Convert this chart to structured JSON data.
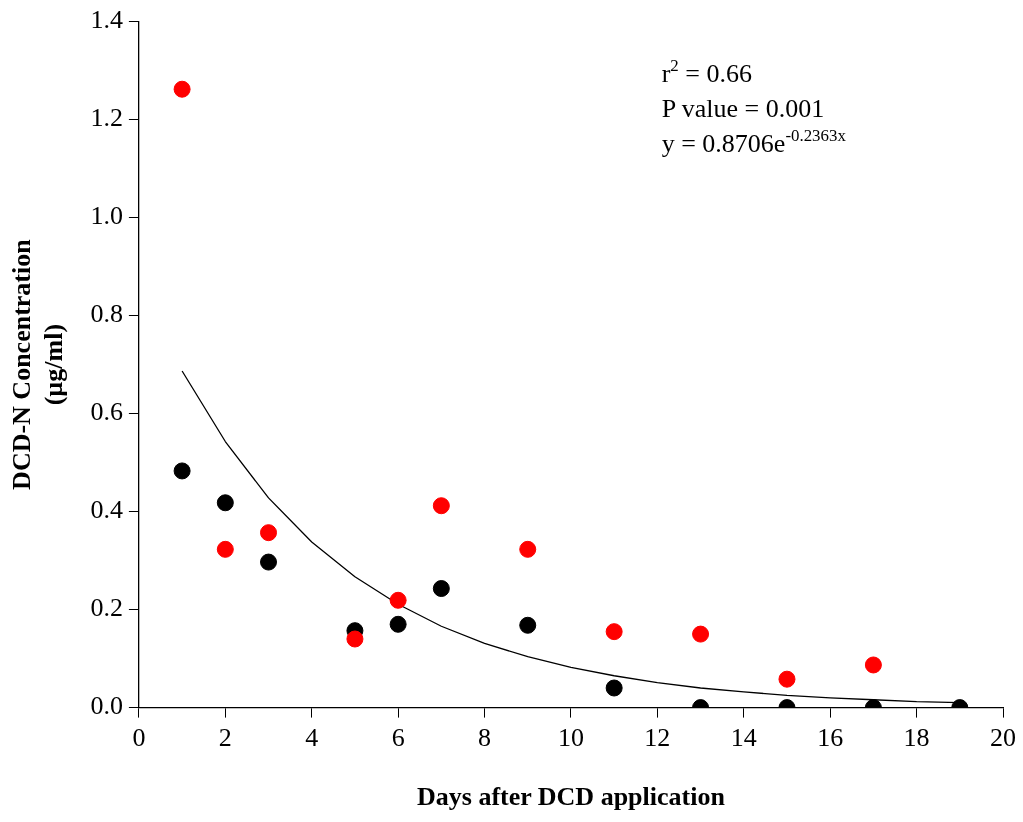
{
  "chart_data": {
    "type": "scatter",
    "xlabel": "Days after DCD application",
    "ylabel": "DCD-N Concentration\n(µg/ml)",
    "xlim": [
      0,
      20
    ],
    "xticks": [
      0,
      2,
      4,
      6,
      8,
      10,
      12,
      14,
      16,
      18,
      20
    ],
    "ylim": [
      0,
      1.4
    ],
    "yticks": [
      {
        "value": 0,
        "label": "0.0"
      },
      {
        "value": 0.2,
        "label": "0.2"
      },
      {
        "value": 0.4,
        "label": "0.4"
      },
      {
        "value": 0.6,
        "label": "0.6"
      },
      {
        "value": 0.8,
        "label": "0.8"
      },
      {
        "value": 1.0,
        "label": "1.0"
      },
      {
        "value": 1.2,
        "label": "1.2"
      },
      {
        "value": 1.4,
        "label": "1.4"
      }
    ],
    "grid": false,
    "legend": false,
    "marker": "circle",
    "series": [
      {
        "color": "#ff0000",
        "x": [
          1,
          2,
          3,
          5,
          6,
          7,
          9,
          11,
          13,
          15,
          17
        ],
        "values": [
          1.262,
          0.323,
          0.357,
          0.14,
          0.219,
          0.412,
          0.323,
          0.155,
          0.15,
          0.058,
          0.087
        ]
      },
      {
        "color": "#000000",
        "x": [
          1,
          2,
          3,
          5,
          6,
          7,
          9,
          11,
          13,
          15,
          17,
          19
        ],
        "values": [
          0.483,
          0.418,
          0.297,
          0.157,
          0.17,
          0.243,
          0.168,
          0.04,
          0,
          0,
          0,
          0
        ]
      },
      {
        "type": "line",
        "color": "#000000",
        "marker": "none",
        "x": [
          1,
          2,
          3,
          4,
          5,
          6,
          7,
          8,
          9,
          10,
          11,
          12,
          13,
          14,
          15,
          16,
          17,
          18,
          19
        ],
        "values": [
          0.687,
          0.543,
          0.428,
          0.338,
          0.267,
          0.211,
          0.166,
          0.131,
          0.104,
          0.082,
          0.065,
          0.051,
          0.04,
          0.032,
          0.025,
          0.02,
          0.016,
          0.012,
          0.01
        ]
      }
    ],
    "annotations": [
      "r$^{2}$ = 0.66",
      "P value = 0.001",
      "y = 0.8706e$^{-0.2363x}$"
    ]
  }
}
